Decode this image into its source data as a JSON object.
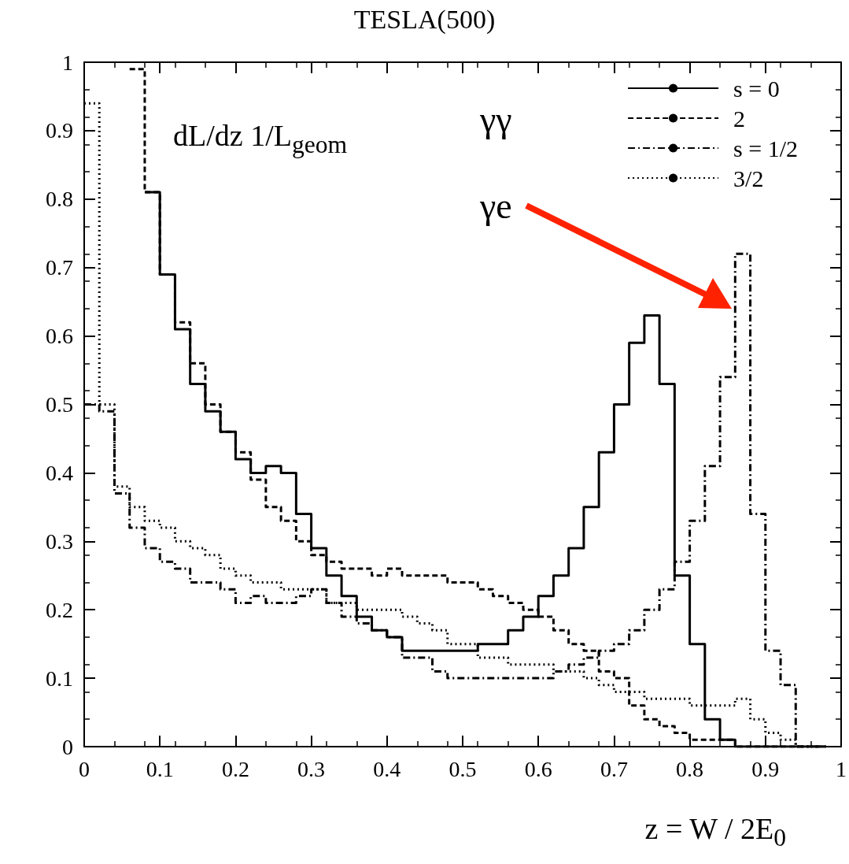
{
  "chart_data": {
    "type": "step",
    "title": "TESLA(500)",
    "xlabel": "z = W / 2E$_{0}$",
    "ylabel": "dL/dz 1/L$_{geom}$",
    "annotations": [
      "γγ",
      "γe"
    ],
    "x": [
      0,
      0.02,
      0.04,
      0.06,
      0.08,
      0.1,
      0.12,
      0.14,
      0.16,
      0.18,
      0.2,
      0.22,
      0.24,
      0.26,
      0.28,
      0.3,
      0.32,
      0.34,
      0.36,
      0.38,
      0.4,
      0.42,
      0.44,
      0.46,
      0.48,
      0.5,
      0.52,
      0.54,
      0.56,
      0.58,
      0.6,
      0.62,
      0.64,
      0.66,
      0.68,
      0.7,
      0.72,
      0.74,
      0.76,
      0.78,
      0.8,
      0.82,
      0.84,
      0.86,
      0.88,
      0.9,
      0.92,
      0.94,
      0.96,
      0.98
    ],
    "series": [
      {
        "name": "s = 0",
        "color": "#000000",
        "line_style": "solid",
        "values": [
          null,
          null,
          null,
          null,
          0.81,
          0.69,
          0.61,
          0.53,
          0.49,
          0.46,
          0.42,
          0.4,
          0.41,
          0.4,
          0.34,
          0.29,
          0.25,
          0.22,
          0.19,
          0.17,
          0.16,
          0.14,
          0.14,
          0.14,
          0.14,
          0.14,
          0.15,
          0.15,
          0.17,
          0.19,
          0.22,
          0.25,
          0.29,
          0.35,
          0.43,
          0.5,
          0.59,
          0.63,
          0.53,
          0.25,
          0.15,
          0.04,
          0.01,
          0,
          0,
          0,
          0,
          0,
          0,
          0
        ]
      },
      {
        "name": "2",
        "color": "#000000",
        "line_style": "dashed",
        "values": [
          null,
          null,
          null,
          0.99,
          0.81,
          0.69,
          0.62,
          0.56,
          0.5,
          0.46,
          0.43,
          0.39,
          0.35,
          0.33,
          0.3,
          0.28,
          0.27,
          0.26,
          0.26,
          0.25,
          0.26,
          0.25,
          0.25,
          0.25,
          0.24,
          0.24,
          0.23,
          0.22,
          0.21,
          0.2,
          0.19,
          0.17,
          0.15,
          0.14,
          0.11,
          0.1,
          0.06,
          0.04,
          0.03,
          0.02,
          0.01,
          0.01,
          0.01,
          0,
          0,
          0,
          0,
          0,
          0,
          0
        ]
      },
      {
        "name": "s = 1/2",
        "color": "#000000",
        "line_style": "dashdot",
        "values": [
          0.5,
          0.49,
          0.37,
          0.32,
          0.29,
          0.27,
          0.26,
          0.24,
          0.24,
          0.23,
          0.21,
          0.22,
          0.21,
          0.21,
          0.22,
          0.23,
          0.21,
          0.19,
          0.18,
          0.17,
          0.16,
          0.13,
          0.13,
          0.11,
          0.1,
          0.1,
          0.1,
          0.1,
          0.1,
          0.1,
          0.1,
          0.11,
          0.12,
          0.13,
          0.14,
          0.15,
          0.17,
          0.2,
          0.23,
          0.27,
          0.33,
          0.41,
          0.54,
          0.72,
          0.34,
          0.14,
          0.09,
          0,
          0,
          0
        ]
      },
      {
        "name": "3/2",
        "color": "#000000",
        "line_style": "dotted",
        "values": [
          0.94,
          0.5,
          0.38,
          0.35,
          0.33,
          0.32,
          0.3,
          0.29,
          0.28,
          0.26,
          0.25,
          0.24,
          0.24,
          0.23,
          0.23,
          0.23,
          0.21,
          0.21,
          0.2,
          0.2,
          0.2,
          0.19,
          0.18,
          0.17,
          0.15,
          0.15,
          0.13,
          0.13,
          0.12,
          0.12,
          0.12,
          0.11,
          0.11,
          0.1,
          0.09,
          0.08,
          0.08,
          0.07,
          0.07,
          0.07,
          0.06,
          0.06,
          0.06,
          0.07,
          0.04,
          0.02,
          0.01,
          0,
          0,
          0
        ]
      }
    ],
    "xlim": [
      0,
      1
    ],
    "xticks": [
      0,
      0.1,
      0.2,
      0.3,
      0.4,
      0.5,
      0.6,
      0.7,
      0.8,
      0.9,
      1
    ],
    "ylim": [
      0,
      1
    ],
    "yticks": [
      0,
      0.1,
      0.2,
      0.3,
      0.4,
      0.5,
      0.6,
      0.7,
      0.8,
      0.9,
      1
    ],
    "legend": "top right",
    "grid": false
  }
}
